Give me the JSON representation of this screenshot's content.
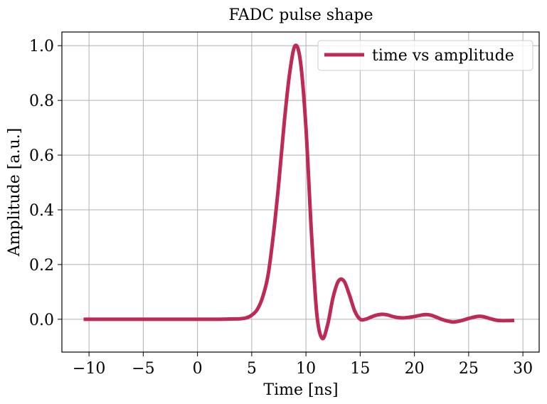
{
  "chart_data": {
    "type": "line",
    "title": "FADC pulse shape",
    "xlabel": "Time [ns]",
    "ylabel": "Amplitude [a.u.]",
    "xlim": [
      -12.5,
      31.5
    ],
    "ylim": [
      -0.12,
      1.05
    ],
    "xticks": [
      -10,
      -5,
      0,
      5,
      10,
      15,
      20,
      25,
      30
    ],
    "yticks": [
      0.0,
      0.2,
      0.4,
      0.6,
      0.8,
      1.0
    ],
    "xtick_labels": [
      "−10",
      "−5",
      "0",
      "5",
      "10",
      "15",
      "20",
      "25",
      "30"
    ],
    "ytick_labels": [
      "0.0",
      "0.2",
      "0.4",
      "0.6",
      "0.8",
      "1.0"
    ],
    "grid": true,
    "legend_position": "top-right",
    "series": [
      {
        "name": "time vs amplitude",
        "color": "#bd2a55",
        "x": [
          -10.5,
          -8,
          -6,
          -4,
          -2,
          0,
          2,
          3,
          4,
          4.5,
          5,
          5.5,
          6,
          6.5,
          7,
          7.5,
          8,
          8.5,
          9,
          9.5,
          10,
          10.5,
          11,
          11.5,
          12,
          12.5,
          13,
          13.5,
          14,
          14.5,
          15,
          15.5,
          16,
          16.5,
          17,
          17.5,
          18,
          18.5,
          19,
          19.5,
          20,
          20.5,
          21,
          21.5,
          22,
          22.5,
          23,
          23.5,
          24,
          24.5,
          25,
          25.5,
          26,
          26.5,
          27,
          27.5,
          28,
          28.5,
          29.2
        ],
        "y": [
          0.0,
          0.0,
          0.0,
          0.0,
          0.0,
          0.0,
          0.0,
          0.001,
          0.002,
          0.005,
          0.015,
          0.035,
          0.08,
          0.16,
          0.31,
          0.5,
          0.72,
          0.9,
          1.0,
          0.94,
          0.7,
          0.32,
          0.02,
          -0.07,
          -0.02,
          0.08,
          0.14,
          0.14,
          0.09,
          0.03,
          0.0,
          0.0,
          0.008,
          0.015,
          0.018,
          0.016,
          0.01,
          0.006,
          0.005,
          0.007,
          0.01,
          0.014,
          0.017,
          0.015,
          0.008,
          0.0,
          -0.006,
          -0.01,
          -0.008,
          -0.003,
          0.003,
          0.008,
          0.011,
          0.008,
          0.002,
          -0.003,
          -0.005,
          -0.005,
          -0.004
        ]
      }
    ]
  }
}
